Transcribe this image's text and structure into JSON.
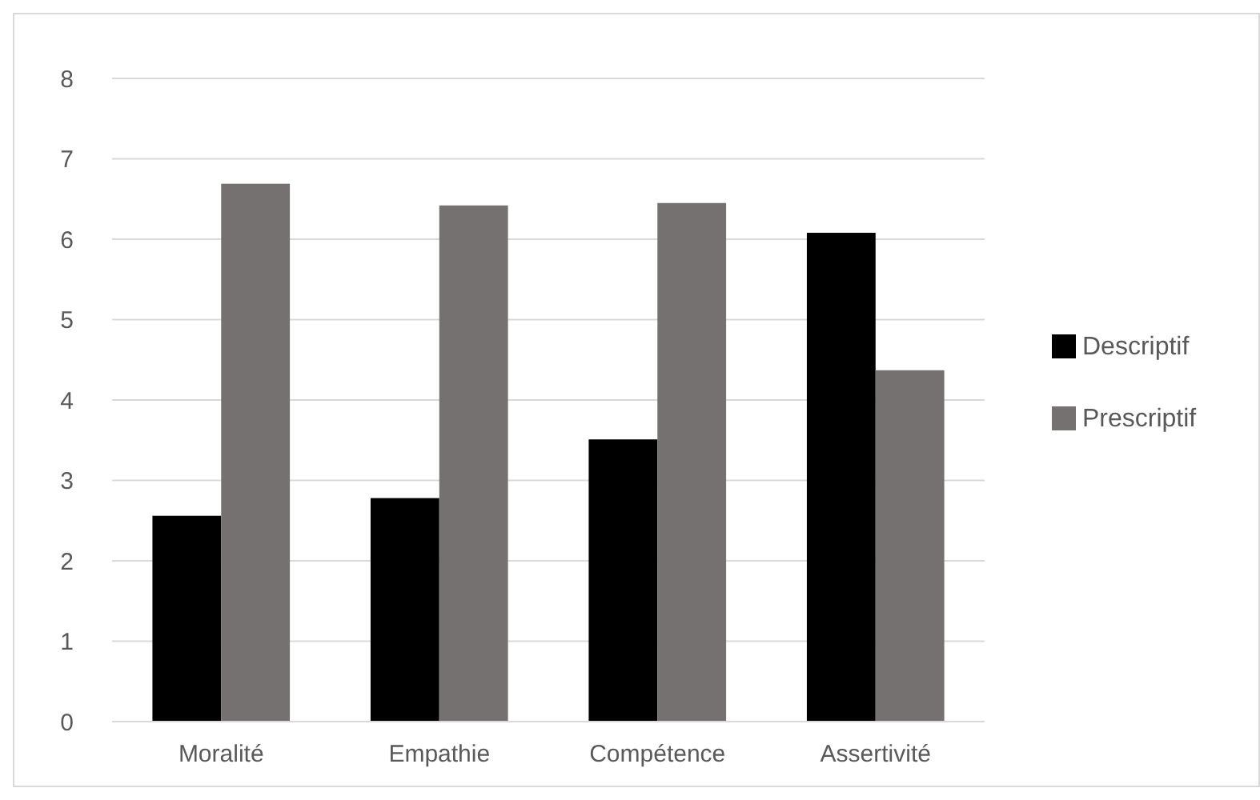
{
  "chart_data": {
    "type": "bar",
    "categories": [
      "Moralité",
      "Empathie",
      "Compétence",
      "Assertivité"
    ],
    "series": [
      {
        "name": "Descriptif",
        "color": "#000000",
        "values": [
          2.56,
          2.78,
          3.51,
          6.08
        ]
      },
      {
        "name": "Prescriptif",
        "color": "#767171",
        "values": [
          6.69,
          6.42,
          6.45,
          4.37
        ]
      }
    ],
    "ylim": [
      0,
      8
    ],
    "yticks": [
      0,
      1,
      2,
      3,
      4,
      5,
      6,
      7,
      8
    ],
    "grid": "y",
    "legend": "right"
  }
}
